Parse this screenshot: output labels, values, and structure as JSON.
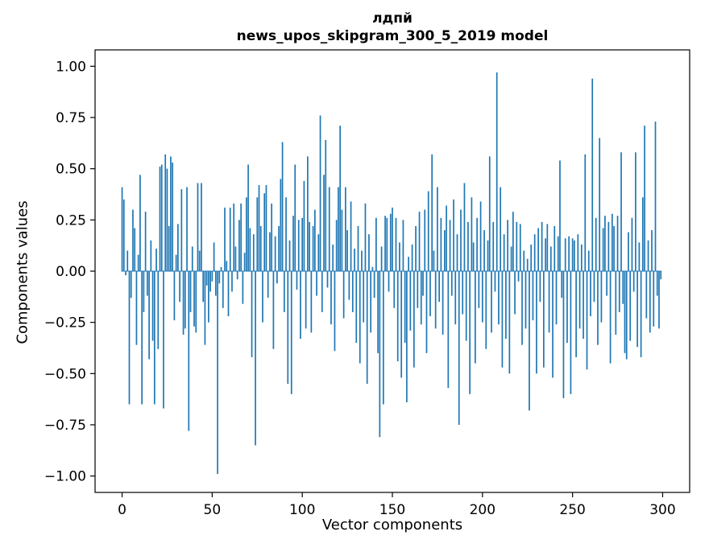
{
  "chart_data": {
    "type": "bar",
    "title_line1": "лдпй",
    "title_line2": "news_upos_skipgram_300_5_2019 model",
    "xlabel": "Vector components",
    "ylabel": "Components values",
    "xlim": [
      -15,
      315
    ],
    "ylim": [
      -1.08,
      1.08
    ],
    "xticks": [
      0,
      50,
      100,
      150,
      200,
      250,
      300
    ],
    "yticks": [
      -1.0,
      -0.75,
      -0.5,
      -0.25,
      0.0,
      0.25,
      0.5,
      0.75,
      1.0
    ],
    "bar_color": "#1f77b4",
    "grid": false,
    "legend": null,
    "values": [
      0.41,
      0.35,
      -0.02,
      0.1,
      -0.65,
      -0.13,
      0.3,
      0.21,
      -0.36,
      0.08,
      0.47,
      -0.65,
      -0.2,
      0.29,
      -0.12,
      -0.43,
      0.15,
      -0.34,
      -0.65,
      0.11,
      -0.38,
      0.51,
      0.52,
      -0.67,
      0.57,
      0.5,
      0.22,
      0.56,
      0.53,
      -0.24,
      0.08,
      0.23,
      -0.15,
      0.4,
      -0.31,
      -0.28,
      0.41,
      -0.78,
      -0.2,
      0.12,
      -0.27,
      -0.3,
      0.43,
      0.1,
      0.43,
      -0.15,
      -0.36,
      -0.07,
      -0.25,
      -0.1,
      -0.05,
      0.14,
      -0.12,
      -0.99,
      -0.06,
      0.02,
      -0.18,
      0.31,
      0.05,
      -0.22,
      0.31,
      -0.1,
      0.33,
      0.12,
      -0.04,
      0.25,
      0.33,
      -0.16,
      0.09,
      0.36,
      0.52,
      0.21,
      -0.42,
      0.18,
      -0.85,
      0.36,
      0.42,
      0.22,
      -0.25,
      0.38,
      0.42,
      -0.13,
      0.19,
      0.33,
      -0.38,
      0.17,
      -0.06,
      0.22,
      0.45,
      0.63,
      -0.2,
      0.36,
      -0.55,
      0.15,
      -0.6,
      0.27,
      0.52,
      -0.09,
      0.25,
      -0.33,
      0.26,
      0.44,
      -0.28,
      0.56,
      0.24,
      -0.3,
      0.22,
      0.3,
      -0.12,
      0.18,
      0.76,
      -0.2,
      0.47,
      0.64,
      -0.08,
      0.41,
      -0.26,
      0.13,
      -0.39,
      0.25,
      0.41,
      0.71,
      0.3,
      -0.23,
      0.41,
      0.2,
      -0.14,
      0.34,
      -0.2,
      0.11,
      -0.35,
      0.22,
      -0.45,
      0.1,
      -0.25,
      0.33,
      -0.55,
      0.18,
      -0.3,
      0.02,
      -0.13,
      0.26,
      -0.4,
      -0.81,
      0.12,
      -0.65,
      0.27,
      0.26,
      -0.1,
      0.28,
      0.31,
      -0.18,
      0.26,
      -0.44,
      0.14,
      -0.52,
      0.25,
      -0.35,
      -0.64,
      0.07,
      -0.29,
      0.13,
      -0.47,
      0.22,
      -0.18,
      0.29,
      -0.26,
      -0.12,
      0.3,
      -0.4,
      0.39,
      -0.22,
      0.57,
      0.1,
      -0.28,
      0.41,
      -0.15,
      0.26,
      -0.31,
      0.2,
      0.32,
      -0.57,
      0.25,
      -0.12,
      0.35,
      -0.26,
      0.18,
      -0.75,
      0.3,
      -0.21,
      0.43,
      -0.34,
      0.24,
      -0.6,
      0.36,
      0.14,
      -0.45,
      0.26,
      -0.18,
      0.34,
      -0.25,
      0.2,
      -0.38,
      0.15,
      0.56,
      -0.3,
      0.24,
      -0.1,
      0.97,
      -0.26,
      0.41,
      -0.47,
      0.18,
      -0.33,
      0.25,
      -0.5,
      0.12,
      0.29,
      -0.21,
      0.24,
      -0.05,
      0.23,
      -0.36,
      0.1,
      -0.28,
      0.06,
      -0.68,
      0.13,
      -0.24,
      0.18,
      -0.5,
      0.21,
      -0.15,
      0.24,
      -0.47,
      0.16,
      0.23,
      -0.3,
      0.12,
      -0.52,
      0.22,
      -0.26,
      0.17,
      0.54,
      -0.13,
      -0.62,
      0.16,
      -0.35,
      0.17,
      -0.6,
      0.16,
      0.15,
      -0.42,
      0.18,
      -0.28,
      0.13,
      -0.33,
      0.57,
      -0.48,
      0.1,
      -0.22,
      0.94,
      -0.15,
      0.26,
      -0.36,
      0.65,
      -0.25,
      0.21,
      0.27,
      -0.12,
      0.24,
      -0.45,
      0.28,
      0.22,
      -0.31,
      0.27,
      -0.2,
      0.58,
      -0.16,
      -0.4,
      -0.43,
      0.19,
      -0.34,
      0.26,
      -0.1,
      0.58,
      -0.37,
      0.14,
      -0.42,
      0.36,
      0.71,
      -0.23,
      0.15,
      -0.3,
      0.2,
      -0.27,
      0.73,
      -0.12,
      -0.28,
      -0.04
    ]
  }
}
